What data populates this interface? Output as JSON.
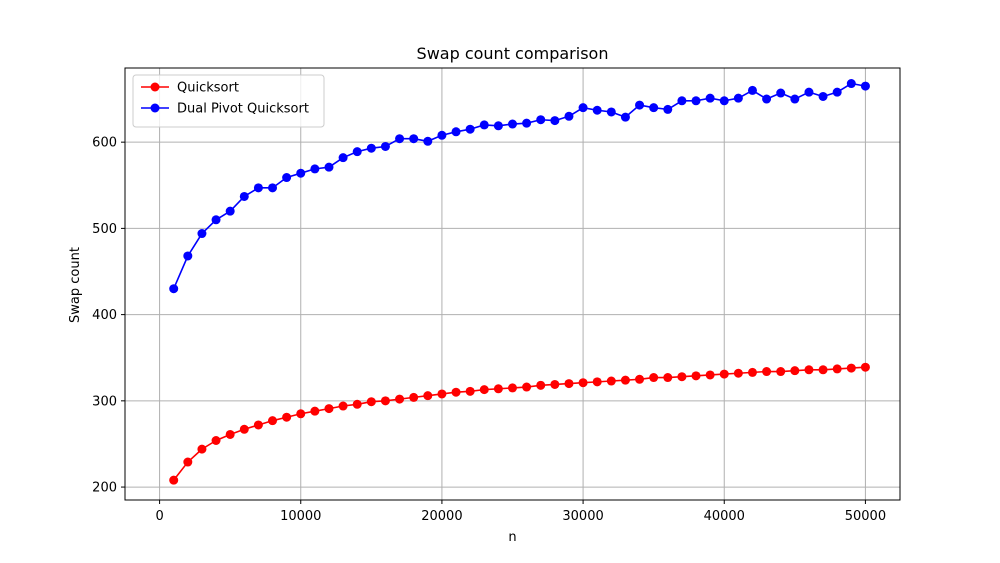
{
  "chart_data": {
    "type": "line",
    "title": "Swap count comparison",
    "xlabel": "n",
    "ylabel": "Swap count",
    "xlim": [
      -2450,
      52450
    ],
    "ylim": [
      185,
      686
    ],
    "xticks": [
      0,
      10000,
      20000,
      30000,
      40000,
      50000
    ],
    "yticks": [
      200,
      300,
      400,
      500,
      600
    ],
    "grid": true,
    "legend_position": "upper-left",
    "x": [
      1000,
      2000,
      3000,
      4000,
      5000,
      6000,
      7000,
      8000,
      9000,
      10000,
      11000,
      12000,
      13000,
      14000,
      15000,
      16000,
      17000,
      18000,
      19000,
      20000,
      21000,
      22000,
      23000,
      24000,
      25000,
      26000,
      27000,
      28000,
      29000,
      30000,
      31000,
      32000,
      33000,
      34000,
      35000,
      36000,
      37000,
      38000,
      39000,
      40000,
      41000,
      42000,
      43000,
      44000,
      45000,
      46000,
      47000,
      48000,
      49000,
      50000
    ],
    "series": [
      {
        "name": "Quicksort",
        "color": "#ff0000",
        "marker": "circle",
        "values": [
          208,
          229,
          244,
          254,
          261,
          267,
          272,
          277,
          281,
          285,
          288,
          291,
          294,
          296,
          299,
          300,
          302,
          304,
          306,
          308,
          310,
          311,
          313,
          314,
          315,
          316,
          318,
          319,
          320,
          321,
          322,
          323,
          324,
          325,
          327,
          327,
          328,
          329,
          330,
          331,
          332,
          333,
          334,
          334,
          335,
          336,
          336,
          337,
          338,
          339
        ]
      },
      {
        "name": "Dual Pivot Quicksort",
        "color": "#0000ff",
        "marker": "circle",
        "values": [
          430,
          468,
          494,
          510,
          520,
          537,
          547,
          547,
          559,
          564,
          569,
          571,
          582,
          589,
          593,
          595,
          604,
          604,
          601,
          608,
          612,
          615,
          620,
          619,
          621,
          622,
          626,
          625,
          630,
          640,
          637,
          635,
          629,
          643,
          640,
          638,
          648,
          648,
          651,
          648,
          651,
          660,
          650,
          657,
          650,
          658,
          653,
          658,
          668,
          665
        ]
      }
    ]
  }
}
